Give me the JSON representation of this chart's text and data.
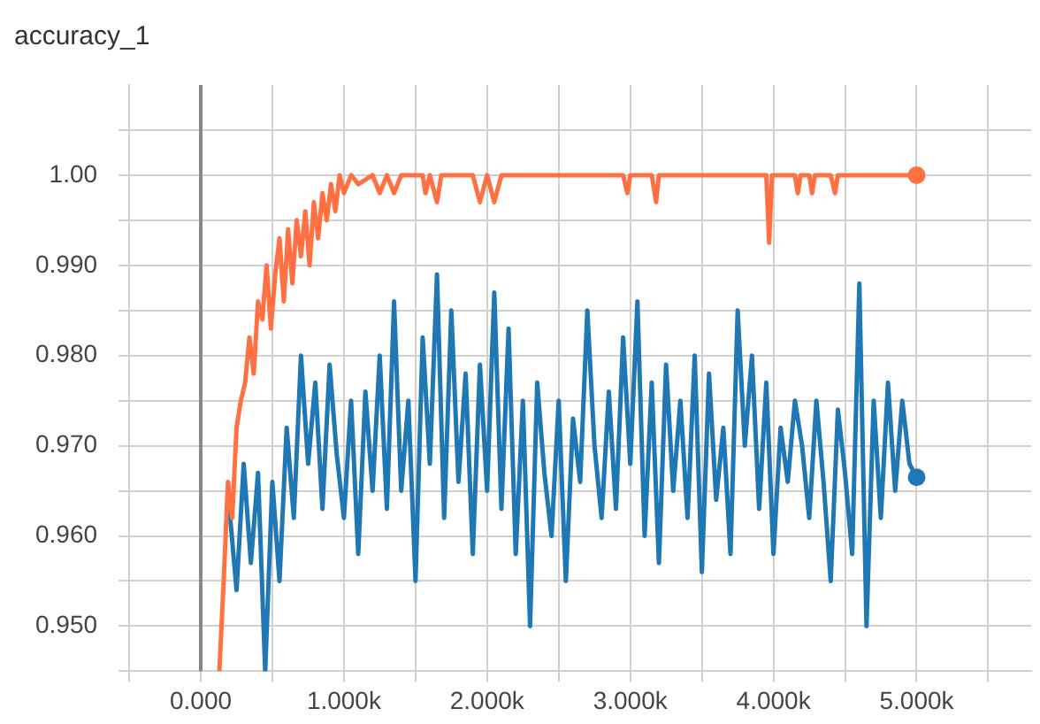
{
  "chart_data": {
    "type": "line",
    "title": "accuracy_1",
    "xlim": [
      -500,
      5800
    ],
    "ylim": [
      0.945,
      1.01
    ],
    "xticks": [
      {
        "value": -500,
        "label": null
      },
      {
        "value": 0,
        "label": "0.000"
      },
      {
        "value": 500,
        "label": null
      },
      {
        "value": 1000,
        "label": "1.000k"
      },
      {
        "value": 1500,
        "label": null
      },
      {
        "value": 2000,
        "label": "2.000k"
      },
      {
        "value": 2500,
        "label": null
      },
      {
        "value": 3000,
        "label": "3.000k"
      },
      {
        "value": 3500,
        "label": null
      },
      {
        "value": 4000,
        "label": "4.000k"
      },
      {
        "value": 4500,
        "label": null
      },
      {
        "value": 5000,
        "label": "5.000k"
      },
      {
        "value": 5500,
        "label": null
      }
    ],
    "yticks": [
      {
        "value": 0.945,
        "label": null
      },
      {
        "value": 0.95,
        "label": "0.950"
      },
      {
        "value": 0.955,
        "label": null
      },
      {
        "value": 0.96,
        "label": "0.960"
      },
      {
        "value": 0.965,
        "label": null
      },
      {
        "value": 0.97,
        "label": "0.970"
      },
      {
        "value": 0.975,
        "label": null
      },
      {
        "value": 0.98,
        "label": "0.980"
      },
      {
        "value": 0.985,
        "label": null
      },
      {
        "value": 0.99,
        "label": "0.990"
      },
      {
        "value": 0.995,
        "label": null
      },
      {
        "value": 1,
        "label": "1.00"
      },
      {
        "value": 1.005,
        "label": null
      }
    ],
    "grid": true,
    "legend": false,
    "series": [
      {
        "color": "#ff7043",
        "x": [
          130,
          160,
          190,
          220,
          250,
          280,
          310,
          340,
          370,
          400,
          430,
          460,
          490,
          520,
          550,
          580,
          610,
          640,
          670,
          700,
          730,
          760,
          790,
          820,
          850,
          880,
          910,
          940,
          970,
          1000,
          1050,
          1100,
          1200,
          1250,
          1300,
          1350,
          1400,
          1450,
          1550,
          1570,
          1600,
          1650,
          1680,
          1700,
          1900,
          1950,
          2000,
          2050,
          2100,
          2950,
          2980,
          3000,
          3050,
          3150,
          3180,
          3200,
          3950,
          3970,
          3990,
          4150,
          4170,
          4190,
          4250,
          4270,
          4290,
          4400,
          4430,
          4450,
          5000
        ],
        "values": [
          0.945,
          0.955,
          0.966,
          0.962,
          0.972,
          0.975,
          0.977,
          0.982,
          0.978,
          0.986,
          0.984,
          0.99,
          0.983,
          0.989,
          0.993,
          0.986,
          0.994,
          0.988,
          0.995,
          0.991,
          0.996,
          0.99,
          0.997,
          0.993,
          0.998,
          0.995,
          0.999,
          0.996,
          1.0,
          0.998,
          1.0,
          0.999,
          1.0,
          0.998,
          1.0,
          0.998,
          1.0,
          1.0,
          1.0,
          0.998,
          1.0,
          0.997,
          1.0,
          1.0,
          1.0,
          0.997,
          1.0,
          0.997,
          1.0,
          1.0,
          0.998,
          1.0,
          1.0,
          1.0,
          0.997,
          1.0,
          1.0,
          0.9925,
          1.0,
          1.0,
          0.998,
          1.0,
          1.0,
          0.998,
          1.0,
          1.0,
          0.998,
          1.0,
          1.0
        ]
      },
      {
        "color": "#1f77b4",
        "x": [
          200,
          250,
          300,
          350,
          400,
          450,
          500,
          550,
          600,
          650,
          700,
          750,
          800,
          850,
          900,
          950,
          1000,
          1050,
          1100,
          1150,
          1200,
          1250,
          1300,
          1350,
          1400,
          1450,
          1500,
          1550,
          1600,
          1650,
          1700,
          1750,
          1800,
          1850,
          1900,
          1950,
          2000,
          2050,
          2100,
          2150,
          2200,
          2250,
          2300,
          2350,
          2400,
          2450,
          2500,
          2550,
          2600,
          2650,
          2700,
          2750,
          2800,
          2850,
          2900,
          2950,
          3000,
          3050,
          3100,
          3150,
          3200,
          3250,
          3300,
          3350,
          3400,
          3450,
          3500,
          3550,
          3600,
          3650,
          3700,
          3750,
          3800,
          3850,
          3900,
          3950,
          4000,
          4050,
          4100,
          4150,
          4200,
          4250,
          4300,
          4350,
          4400,
          4450,
          4500,
          4550,
          4600,
          4650,
          4700,
          4750,
          4800,
          4850,
          4900,
          4950,
          5000
        ],
        "values": [
          0.963,
          0.954,
          0.968,
          0.957,
          0.967,
          0.945,
          0.966,
          0.955,
          0.972,
          0.962,
          0.98,
          0.968,
          0.977,
          0.963,
          0.979,
          0.969,
          0.962,
          0.975,
          0.958,
          0.976,
          0.965,
          0.98,
          0.963,
          0.986,
          0.965,
          0.975,
          0.955,
          0.982,
          0.968,
          0.989,
          0.962,
          0.985,
          0.966,
          0.978,
          0.958,
          0.979,
          0.965,
          0.987,
          0.963,
          0.983,
          0.958,
          0.975,
          0.95,
          0.977,
          0.967,
          0.96,
          0.975,
          0.955,
          0.973,
          0.966,
          0.985,
          0.97,
          0.962,
          0.976,
          0.963,
          0.982,
          0.968,
          0.986,
          0.96,
          0.977,
          0.957,
          0.979,
          0.965,
          0.975,
          0.962,
          0.98,
          0.956,
          0.978,
          0.964,
          0.972,
          0.958,
          0.985,
          0.97,
          0.98,
          0.963,
          0.977,
          0.958,
          0.972,
          0.966,
          0.975,
          0.97,
          0.962,
          0.975,
          0.966,
          0.955,
          0.974,
          0.967,
          0.958,
          0.988,
          0.95,
          0.975,
          0.962,
          0.977,
          0.965,
          0.975,
          0.968,
          0.9665
        ]
      }
    ]
  }
}
